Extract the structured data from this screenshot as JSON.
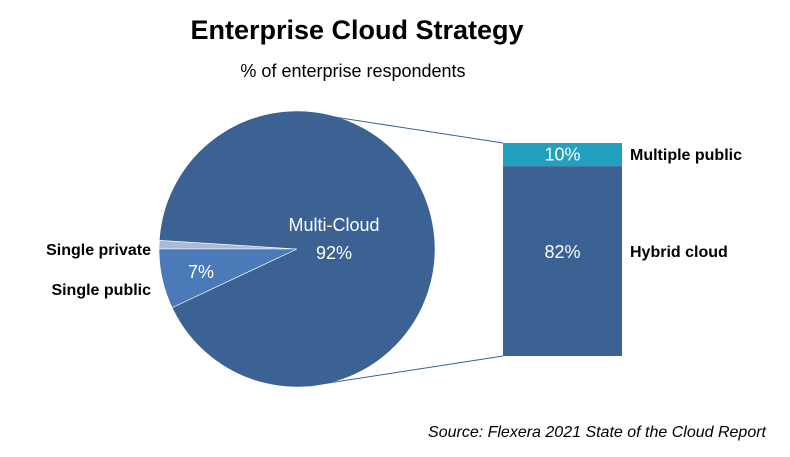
{
  "chart_data": {
    "type": "pie",
    "title": "Enterprise Cloud Strategy",
    "subtitle": "% of enterprise  respondents",
    "source": "Source: Flexera 2021 State of the Cloud Report",
    "categories": [
      "Multi-Cloud",
      "Single public",
      "Single private"
    ],
    "values": [
      92,
      7,
      1
    ],
    "value_labels": [
      "92%",
      "7%",
      null
    ],
    "colors": [
      "#3b6292",
      "#4a7ab8",
      "#a9bbd6"
    ],
    "breakdown": {
      "categories": [
        "Multiple public",
        "Hybrid cloud"
      ],
      "values": [
        10,
        82
      ],
      "value_labels": [
        "10%",
        "82%"
      ],
      "colors": [
        "#22a0c0",
        "#3b6292"
      ]
    }
  }
}
